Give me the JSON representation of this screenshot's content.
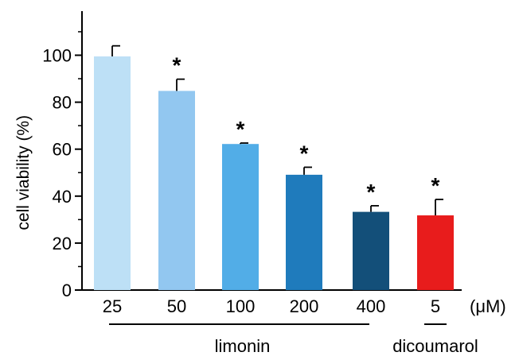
{
  "chart_data": {
    "type": "bar",
    "title": "",
    "ylabel": "cell viability (%)",
    "xlabel": "",
    "unit_label": "(μM)",
    "ylim": [
      0,
      120
    ],
    "yticks": [
      0,
      20,
      40,
      60,
      80,
      100
    ],
    "categories": [
      "25",
      "50",
      "100",
      "200",
      "400",
      "5"
    ],
    "values": [
      99.5,
      84.8,
      62.2,
      49.1,
      33.3,
      31.8
    ],
    "errors": [
      4.5,
      5.0,
      0.4,
      3.2,
      2.6,
      6.8
    ],
    "significant": [
      false,
      true,
      true,
      true,
      true,
      true
    ],
    "significance_marker": "*",
    "colors": [
      "#bde0f6",
      "#92c7f0",
      "#52ade7",
      "#1f7bbc",
      "#134f79",
      "#e81c1c"
    ],
    "groups": [
      {
        "label": "limonin",
        "from": 0,
        "to": 4
      },
      {
        "label": "dicoumarol",
        "from": 5,
        "to": 5
      }
    ],
    "grid": false,
    "legend": "none"
  }
}
